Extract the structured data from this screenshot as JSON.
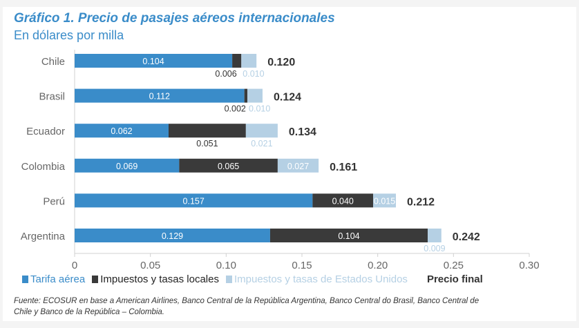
{
  "title": "Gráfico 1. Precio de pasajes aéreos internacionales",
  "subtitle": "En dólares por milla",
  "colors": {
    "tarifa": "#3a8cc9",
    "locales": "#3a3a3a",
    "eeuu": "#b5d0e4",
    "title": "#3a8cc9"
  },
  "chart_data": {
    "type": "bar",
    "orientation": "horizontal",
    "stacked": true,
    "title": "Gráfico 1. Precio de pasajes aéreos internacionales",
    "subtitle": "En dólares por milla",
    "categories": [
      "Chile",
      "Brasil",
      "Ecuador",
      "Colombia",
      "Perú",
      "Argentina"
    ],
    "series": [
      {
        "name": "Tarifa aérea",
        "values": [
          0.104,
          0.112,
          0.062,
          0.069,
          0.157,
          0.129
        ],
        "labels": [
          "0.104",
          "0.112",
          "0.062",
          "0.069",
          "0.157",
          "0.129"
        ],
        "label_pos": [
          "inside",
          "inside",
          "inside",
          "inside",
          "inside",
          "inside"
        ]
      },
      {
        "name": "Impuestos y tasas locales",
        "values": [
          0.006,
          0.002,
          0.051,
          0.065,
          0.04,
          0.104
        ],
        "labels": [
          "0.006",
          "0.002",
          "0.051",
          "0.065",
          "0.040",
          "0.104"
        ],
        "label_pos": [
          "below",
          "below",
          "below",
          "inside",
          "inside",
          "inside"
        ]
      },
      {
        "name": "Impuestos y tasas de Estados Unidos",
        "values": [
          0.01,
          0.01,
          0.021,
          0.027,
          0.015,
          0.009
        ],
        "labels": [
          "0.010",
          "0.010",
          "0.021",
          "0.027",
          "0.015",
          "0.009"
        ],
        "label_pos": [
          "below",
          "below",
          "below",
          "inside",
          "inside",
          "below"
        ]
      }
    ],
    "totals": {
      "name": "Precio final",
      "values": [
        0.12,
        0.124,
        0.134,
        0.161,
        0.212,
        0.242
      ],
      "labels": [
        "0.120",
        "0.124",
        "0.134",
        "0.161",
        "0.212",
        "0.242"
      ]
    },
    "xlim": [
      0,
      0.3
    ],
    "xticks": [
      0,
      0.05,
      0.1,
      0.15,
      0.2,
      0.25,
      0.3
    ],
    "xtick_labels": [
      "0",
      "0.05",
      "0.10",
      "0.15",
      "0.20",
      "0.25",
      "0.30"
    ],
    "grid": false,
    "legend_position": "bottom"
  },
  "legend": {
    "tarifa": "Tarifa aérea",
    "locales": "Impuestos y tasas locales",
    "eeuu": "Impuestos y tasas de Estados Unidos",
    "final": "Precio final"
  },
  "source": "Fuente: ECOSUR en base a American Airlines, Banco Central de la República Argentina, Banco Central do Brasil, Banco Central de Chile y Banco de la República – Colombia."
}
